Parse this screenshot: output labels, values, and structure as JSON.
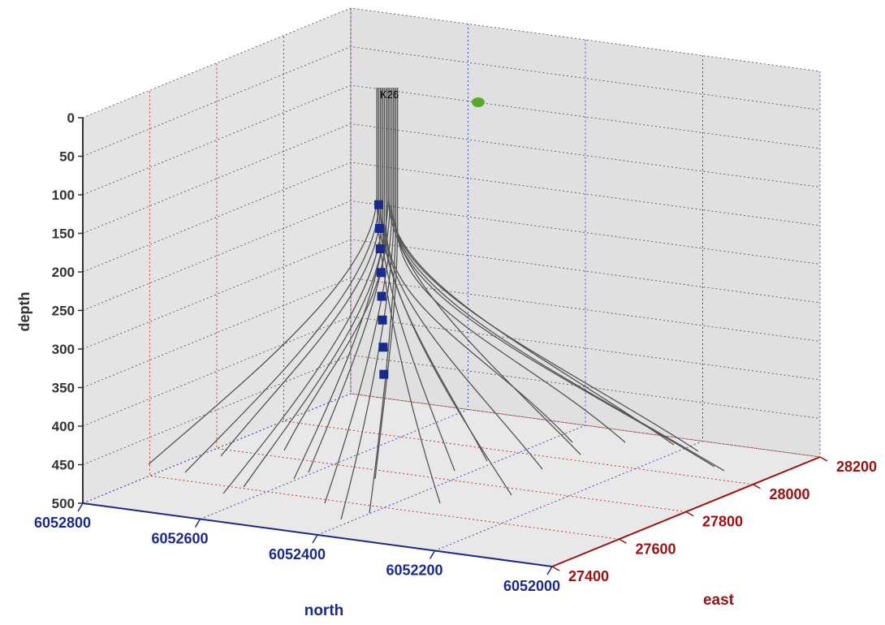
{
  "chart_data": {
    "type": "3d-line",
    "well_label": "K26",
    "zlabel": "depth",
    "xlabel": "north",
    "ylabel": "east",
    "zticks": [
      "0",
      "50",
      "100",
      "150",
      "200",
      "250",
      "300",
      "350",
      "400",
      "450",
      "500"
    ],
    "xticks": [
      "6052800",
      "6052600",
      "6052400",
      "6052200",
      "6052000"
    ],
    "yticks": [
      "27400",
      "27600",
      "27800",
      "28000",
      "28200"
    ],
    "zlim": [
      0,
      500
    ],
    "zdir": "reversed",
    "grid": true,
    "trajectory_color": "#555555",
    "marker_color": "#1a2a8c",
    "green_point_color": "#5aa82a",
    "north_axis_color": "#1a2a8c",
    "east_axis_color": "#a01010",
    "depth_axis_color": "#333333",
    "marker_depths": [
      130,
      165,
      195,
      230,
      265,
      300,
      340,
      380
    ],
    "wells_note": ""
  }
}
